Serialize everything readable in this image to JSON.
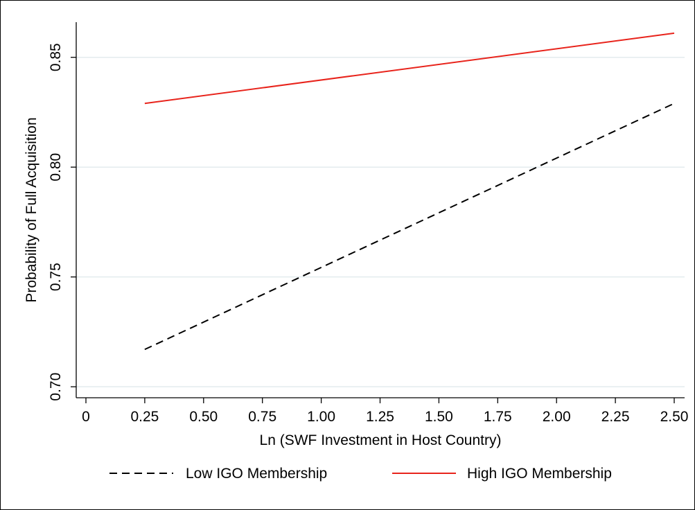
{
  "chart_data": {
    "type": "line",
    "title": "",
    "xlabel": "Ln (SWF Investment in Host Country)",
    "ylabel": "Probability of Full Acquisition",
    "xlim": [
      0,
      2.5
    ],
    "ylim": [
      0.695,
      0.866
    ],
    "x_ticks": [
      "0",
      "0.25",
      "0.50",
      "0.75",
      "1.00",
      "1.25",
      "1.50",
      "1.75",
      "2.00",
      "2.25",
      "2.50"
    ],
    "x_tick_values": [
      0,
      0.25,
      0.5,
      0.75,
      1.0,
      1.25,
      1.5,
      1.75,
      2.0,
      2.25,
      2.5
    ],
    "y_ticks": [
      "0.70",
      "0.75",
      "0.80",
      "0.85"
    ],
    "y_tick_values": [
      0.7,
      0.75,
      0.8,
      0.85
    ],
    "grid": "horizontal",
    "legend_position": "bottom",
    "series": [
      {
        "name": "Low IGO Membership",
        "color": "#000000",
        "style": "dashed",
        "x": [
          0.25,
          2.5
        ],
        "y": [
          0.717,
          0.829
        ]
      },
      {
        "name": "High IGO Membership",
        "color": "#e8231b",
        "style": "solid",
        "x": [
          0.25,
          2.5
        ],
        "y": [
          0.829,
          0.861
        ]
      }
    ]
  }
}
